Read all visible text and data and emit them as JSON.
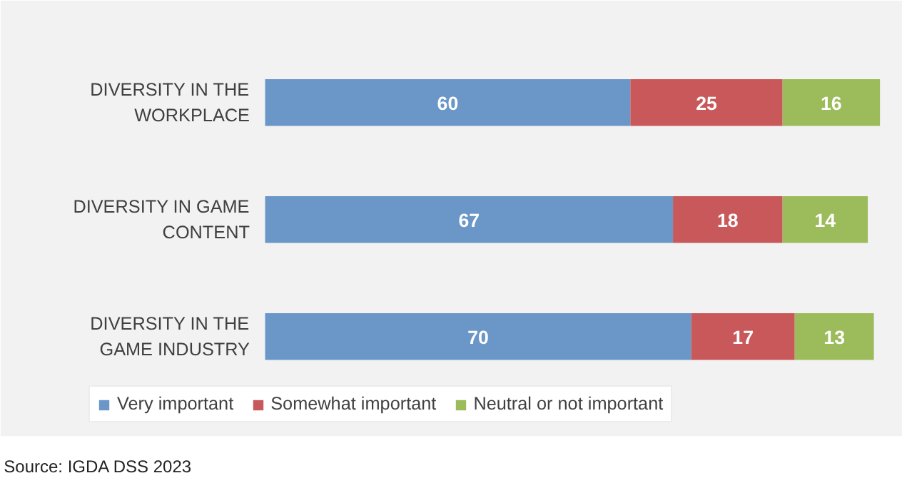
{
  "chart_data": {
    "type": "bar",
    "orientation": "horizontal",
    "stacked": true,
    "data_labels": true,
    "legend": "bottom",
    "grid": false,
    "tick_labels": false,
    "categories": [
      "DIVERSITY IN THE WORKPLACE",
      "DIVERSITY IN GAME CONTENT",
      "DIVERSITY IN THE GAME INDUSTRY"
    ],
    "series": [
      {
        "name": "Very important",
        "color": "#6a96c8",
        "values": [
          60,
          67,
          70
        ]
      },
      {
        "name": "Somewhat important",
        "color": "#c8585a",
        "values": [
          25,
          18,
          17
        ]
      },
      {
        "name": "Neutral or not important",
        "color": "#9cbb5b",
        "values": [
          16,
          14,
          13
        ]
      }
    ],
    "annotations": [
      "Source: IGDA DSS 2023"
    ]
  }
}
